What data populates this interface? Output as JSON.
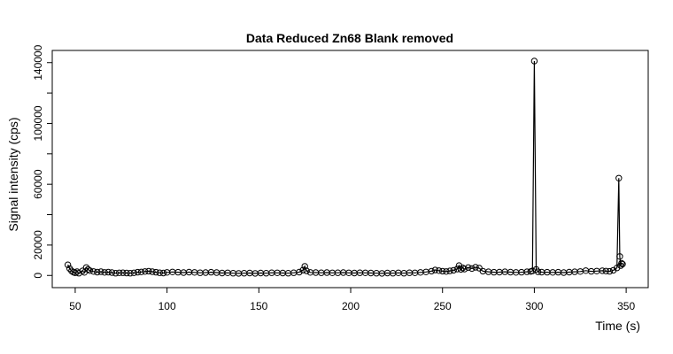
{
  "chart_data": {
    "type": "line",
    "title": "Data Reduced Zn68 Blank removed",
    "xlabel": "Time (s)",
    "ylabel": "Signal intensity (cps)",
    "xlim": [
      37.5,
      362
    ],
    "ylim": [
      -8000,
      148000
    ],
    "xticks": [
      50,
      100,
      150,
      200,
      250,
      300,
      350
    ],
    "yticks": [
      0,
      20000,
      60000,
      100000,
      140000
    ],
    "yminor_ticks": [
      40000,
      80000,
      120000
    ],
    "grid": false,
    "series": [
      {
        "marker": "open-circle",
        "x": [
          46,
          47,
          48,
          49,
          50,
          51,
          52,
          54,
          55,
          56,
          57,
          58,
          60,
          62,
          64,
          66,
          68,
          70,
          72,
          74,
          76,
          78,
          80,
          82,
          84,
          86,
          88,
          90,
          92,
          94,
          96,
          98,
          100,
          103,
          106,
          109,
          112,
          115,
          118,
          121,
          124,
          127,
          130,
          133,
          136,
          139,
          142,
          145,
          148,
          151,
          154,
          157,
          160,
          163,
          166,
          169,
          172,
          174,
          175,
          176,
          178,
          181,
          184,
          187,
          190,
          193,
          196,
          199,
          202,
          205,
          208,
          211,
          214,
          217,
          220,
          223,
          226,
          229,
          232,
          235,
          238,
          241,
          244,
          246,
          248,
          250,
          252,
          254,
          256,
          258,
          259,
          260,
          261,
          262,
          264,
          266,
          268,
          270,
          272,
          275,
          278,
          281,
          284,
          287,
          290,
          293,
          296,
          298,
          299,
          300,
          301,
          302,
          304,
          307,
          310,
          313,
          316,
          319,
          322,
          325,
          328,
          331,
          334,
          337,
          339,
          341,
          343,
          345,
          346,
          346.5,
          347,
          347.5,
          348
        ],
        "y": [
          7000,
          4500,
          3000,
          2200,
          1800,
          2500,
          1500,
          3000,
          2000,
          5200,
          4000,
          3200,
          2600,
          2200,
          2500,
          2000,
          2200,
          1900,
          1500,
          1700,
          1800,
          1600,
          1500,
          1700,
          2100,
          2300,
          2600,
          2800,
          2500,
          2100,
          1800,
          1600,
          2000,
          2300,
          2100,
          1900,
          2200,
          2000,
          1800,
          1900,
          2100,
          1900,
          1600,
          1700,
          1500,
          1400,
          1500,
          1600,
          1400,
          1600,
          1500,
          1800,
          1700,
          1600,
          1500,
          1800,
          2200,
          3500,
          6000,
          3000,
          2000,
          1900,
          1800,
          1900,
          1700,
          1800,
          1900,
          1700,
          1600,
          1800,
          1700,
          1600,
          1500,
          1400,
          1600,
          1500,
          1700,
          1500,
          1800,
          1700,
          2000,
          2300,
          2800,
          3600,
          3200,
          2800,
          2600,
          3000,
          3400,
          4200,
          6500,
          4000,
          5000,
          4200,
          5200,
          4600,
          5400,
          4800,
          2800,
          2400,
          2100,
          2200,
          2400,
          2200,
          2000,
          2100,
          2400,
          2600,
          3000,
          141000,
          4000,
          2400,
          2200,
          2100,
          2000,
          2100,
          1900,
          2200,
          2400,
          2600,
          3200,
          2700,
          2900,
          3100,
          2900,
          2700,
          3400,
          5000,
          64000,
          12500,
          6500,
          8000,
          7500
        ]
      }
    ]
  }
}
